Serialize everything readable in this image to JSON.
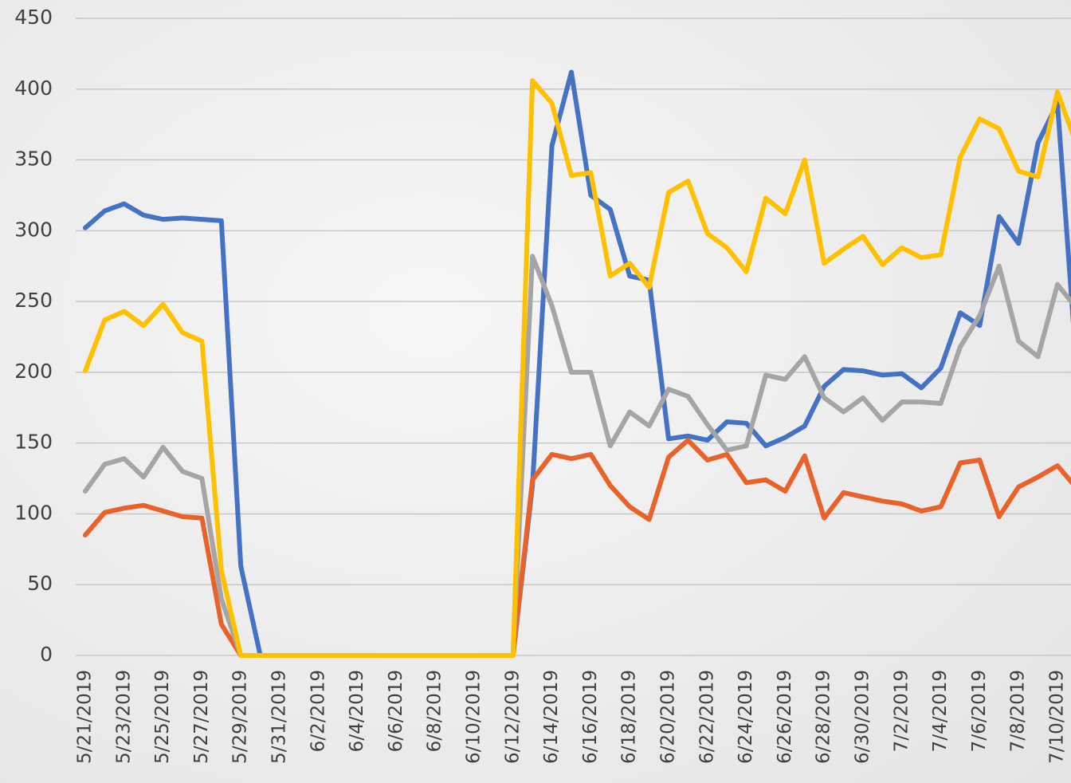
{
  "chart_data": {
    "type": "line",
    "categories": [
      "5/21/2019",
      null,
      "5/23/2019",
      null,
      "5/25/2019",
      null,
      "5/27/2019",
      null,
      "5/29/2019",
      null,
      "5/31/2019",
      null,
      "6/2/2019",
      null,
      "6/4/2019",
      null,
      "6/6/2019",
      null,
      "6/8/2019",
      null,
      "6/10/2019",
      null,
      "6/12/2019",
      null,
      "6/14/2019",
      null,
      "6/16/2019",
      null,
      "6/18/2019",
      null,
      "6/20/2019",
      null,
      "6/22/2019",
      null,
      "6/24/2019",
      null,
      "6/26/2019",
      null,
      "6/28/2019",
      null,
      "6/30/2019",
      null,
      "7/2/2019",
      null,
      "7/4/2019",
      null,
      "7/6/2019",
      null,
      "7/8/2019",
      null,
      "7/10/2019",
      null
    ],
    "series": [
      {
        "color": "#4472c4",
        "values": [
          302,
          314,
          319,
          311,
          308,
          309,
          308,
          307,
          63,
          0,
          0,
          0,
          0,
          0,
          0,
          0,
          0,
          0,
          0,
          0,
          0,
          0,
          0,
          120,
          360,
          412,
          325,
          315,
          268,
          265,
          153,
          155,
          152,
          165,
          164,
          148,
          154,
          162,
          190,
          202,
          201,
          198,
          199,
          189,
          203,
          242,
          233,
          310,
          291,
          362,
          390,
          200
        ]
      },
      {
        "color": "#e8622a",
        "values": [
          85,
          101,
          104,
          106,
          102,
          98,
          97,
          22,
          0,
          0,
          0,
          0,
          0,
          0,
          0,
          0,
          0,
          0,
          0,
          0,
          0,
          0,
          0,
          124,
          142,
          139,
          142,
          120,
          105,
          96,
          140,
          152,
          138,
          142,
          122,
          124,
          116,
          141,
          97,
          115,
          112,
          109,
          107,
          102,
          105,
          136,
          138,
          98,
          119,
          126,
          134,
          118
        ]
      },
      {
        "color": "#a5a5a5",
        "values": [
          116,
          135,
          139,
          126,
          147,
          130,
          125,
          40,
          0,
          0,
          0,
          0,
          0,
          0,
          0,
          0,
          0,
          0,
          0,
          0,
          0,
          0,
          0,
          282,
          247,
          200,
          200,
          148,
          172,
          162,
          188,
          183,
          163,
          145,
          148,
          198,
          195,
          211,
          182,
          172,
          182,
          166,
          179,
          179,
          178,
          218,
          240,
          275,
          222,
          211,
          262,
          245
        ]
      },
      {
        "color": "#ffc000",
        "values": [
          201,
          237,
          243,
          233,
          248,
          228,
          222,
          60,
          0,
          0,
          0,
          0,
          0,
          0,
          0,
          0,
          0,
          0,
          0,
          0,
          0,
          0,
          0,
          406,
          390,
          339,
          341,
          268,
          277,
          260,
          327,
          335,
          298,
          288,
          271,
          323,
          312,
          350,
          277,
          287,
          296,
          276,
          288,
          281,
          283,
          352,
          379,
          372,
          342,
          338,
          398,
          360
        ]
      }
    ],
    "ylim": [
      0,
      450
    ],
    "yticks": [
      0,
      50,
      100,
      150,
      200,
      250,
      300,
      350,
      400,
      450
    ],
    "grid": true
  }
}
